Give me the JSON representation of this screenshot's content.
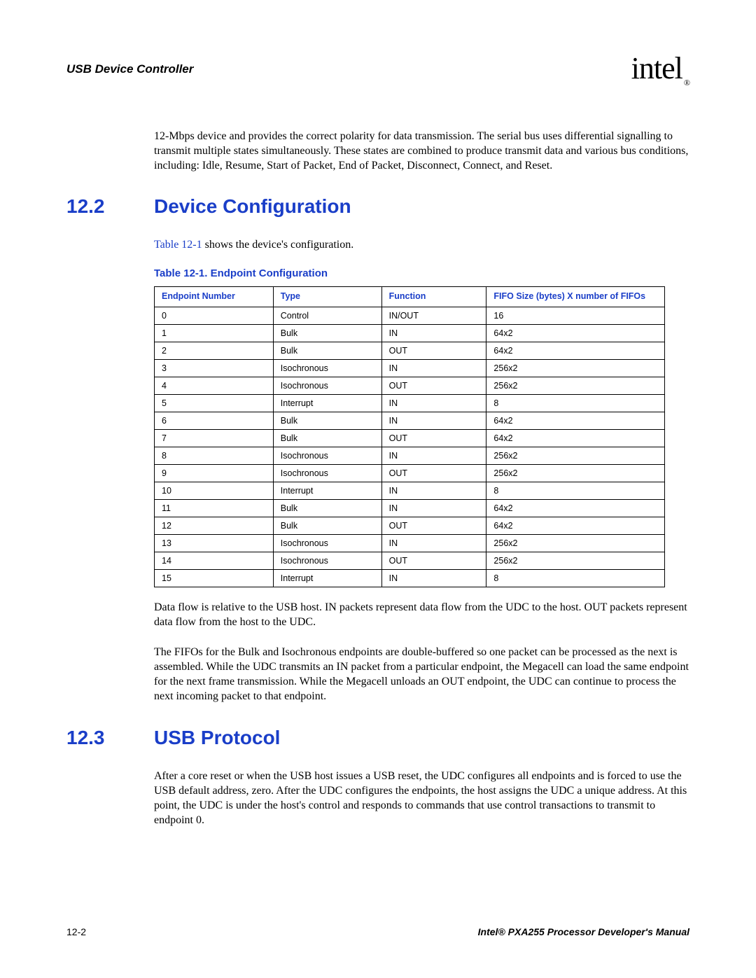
{
  "header": {
    "title": "USB Device Controller",
    "logo_text": "intel",
    "logo_reg": "®"
  },
  "intro_paragraph": "12-Mbps device and provides the correct polarity for data transmission. The serial bus uses differential signalling to transmit multiple states simultaneously. These states are combined to produce transmit data and various bus conditions, including: Idle, Resume, Start of Packet, End of Packet, Disconnect, Connect, and Reset.",
  "section_12_2": {
    "num": "12.2",
    "title": "Device Configuration",
    "intro_pre": "",
    "intro_link": "Table 12-1",
    "intro_post": " shows the device's configuration.",
    "table_caption": "Table 12-1. Endpoint Configuration"
  },
  "table": {
    "headers": {
      "endpoint": "Endpoint Number",
      "type": "Type",
      "function": "Function",
      "fifo": "FIFO Size (bytes) X number of FIFOs"
    },
    "rows": [
      {
        "ep": "0",
        "type": "Control",
        "func": "IN/OUT",
        "fifo": "16"
      },
      {
        "ep": "1",
        "type": "Bulk",
        "func": "IN",
        "fifo": "64x2"
      },
      {
        "ep": "2",
        "type": "Bulk",
        "func": "OUT",
        "fifo": "64x2"
      },
      {
        "ep": "3",
        "type": "Isochronous",
        "func": "IN",
        "fifo": "256x2"
      },
      {
        "ep": "4",
        "type": "Isochronous",
        "func": "OUT",
        "fifo": "256x2"
      },
      {
        "ep": "5",
        "type": "Interrupt",
        "func": "IN",
        "fifo": "8"
      },
      {
        "ep": "6",
        "type": "Bulk",
        "func": "IN",
        "fifo": "64x2"
      },
      {
        "ep": "7",
        "type": "Bulk",
        "func": "OUT",
        "fifo": "64x2"
      },
      {
        "ep": "8",
        "type": "Isochronous",
        "func": "IN",
        "fifo": "256x2"
      },
      {
        "ep": "9",
        "type": "Isochronous",
        "func": "OUT",
        "fifo": "256x2"
      },
      {
        "ep": "10",
        "type": "Interrupt",
        "func": "IN",
        "fifo": "8"
      },
      {
        "ep": "11",
        "type": "Bulk",
        "func": "IN",
        "fifo": "64x2"
      },
      {
        "ep": "12",
        "type": "Bulk",
        "func": "OUT",
        "fifo": "64x2"
      },
      {
        "ep": "13",
        "type": "Isochronous",
        "func": "IN",
        "fifo": "256x2"
      },
      {
        "ep": "14",
        "type": "Isochronous",
        "func": "OUT",
        "fifo": "256x2"
      },
      {
        "ep": "15",
        "type": "Interrupt",
        "func": "IN",
        "fifo": "8"
      }
    ]
  },
  "para_dataflow": "Data flow is relative to the USB host. IN packets represent data flow from the UDC to the host. OUT packets represent data flow from the host to the UDC.",
  "para_fifos": "The FIFOs for the Bulk and Isochronous endpoints are double-buffered so one packet can be processed as the next is assembled. While the UDC transmits an IN packet from a particular endpoint, the Megacell can load the same endpoint for the next frame transmission. While the Megacell unloads an OUT endpoint, the UDC can continue to process the next incoming packet to that endpoint.",
  "section_12_3": {
    "num": "12.3",
    "title": "USB Protocol",
    "body": "After a core reset or when the USB host issues a USB reset, the UDC configures all endpoints and is forced to use the USB default address, zero. After the UDC configures the endpoints, the host assigns the UDC a unique address. At this point, the UDC is under the host's control and responds to commands that use control transactions to transmit to endpoint 0."
  },
  "footer": {
    "page": "12-2",
    "manual": "Intel® PXA255 Processor Developer's Manual"
  },
  "colors": {
    "link_blue": "#1a3ec8",
    "text_black": "#000000",
    "background": "#ffffff"
  }
}
